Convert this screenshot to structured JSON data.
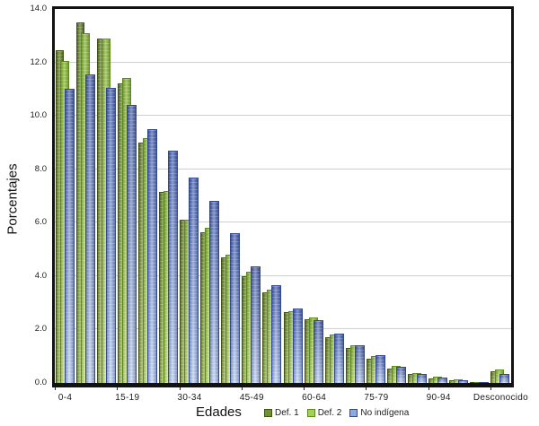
{
  "chart_data": {
    "type": "bar",
    "title": "",
    "xlabel": "Edades",
    "ylabel": "Porcentajes",
    "ylim": [
      0,
      14
    ],
    "ytick_step": 2,
    "ytick_labels": [
      "0.0",
      "2.0",
      "4.0",
      "6.0",
      "8.0",
      "10.0",
      "12.0",
      "14.0"
    ],
    "grid": "horizontal, light gray, every 2.0",
    "legend_position": "bottom-right",
    "categories": [
      "0-4",
      "5-9",
      "10-14",
      "15-19",
      "20-24",
      "25-29",
      "30-34",
      "35-39",
      "40-44",
      "45-49",
      "50-54",
      "55-59",
      "60-64",
      "65-69",
      "70-74",
      "75-79",
      "80-84",
      "85-89",
      "90-94",
      "95-99",
      "100 y más",
      "Desconocido"
    ],
    "xtick_shown_indices": [
      0,
      3,
      6,
      9,
      12,
      15,
      18,
      21
    ],
    "series": [
      {
        "name": "Def. 1",
        "color_top": "#5e7a22",
        "color_bottom": "#94b24a",
        "color_border": "#3e5314",
        "legend_color": "#6e9231",
        "values": [
          12.45,
          13.5,
          12.9,
          11.2,
          9.0,
          7.15,
          6.1,
          5.65,
          4.7,
          4.0,
          3.4,
          2.65,
          2.4,
          1.7,
          1.3,
          0.9,
          0.55,
          0.33,
          0.17,
          0.1,
          0.03,
          0.45
        ]
      },
      {
        "name": "Def. 2",
        "color_top": "#83b52e",
        "color_bottom": "#c6e17c",
        "color_border": "#5d8a1e",
        "legend_color": "#a5d055",
        "values": [
          12.05,
          13.1,
          12.9,
          11.4,
          9.15,
          7.2,
          6.1,
          5.8,
          4.8,
          4.15,
          3.5,
          2.7,
          2.45,
          1.8,
          1.4,
          1.0,
          0.63,
          0.38,
          0.22,
          0.12,
          0.04,
          0.5
        ]
      },
      {
        "name": "No indígena",
        "color_top": "#4a64ae",
        "color_bottom": "#bdd2f2",
        "color_border": "#32478c",
        "legend_color": "#8da9e0",
        "values": [
          11.0,
          11.55,
          11.05,
          10.4,
          9.5,
          8.7,
          7.7,
          6.8,
          5.6,
          4.35,
          3.65,
          2.8,
          2.35,
          1.85,
          1.4,
          1.05,
          0.6,
          0.35,
          0.2,
          0.1,
          0.03,
          0.35
        ]
      }
    ],
    "frame_color": "#121212",
    "gridline_color": "#cfcfcf",
    "text_color": "#1c1c1c"
  }
}
